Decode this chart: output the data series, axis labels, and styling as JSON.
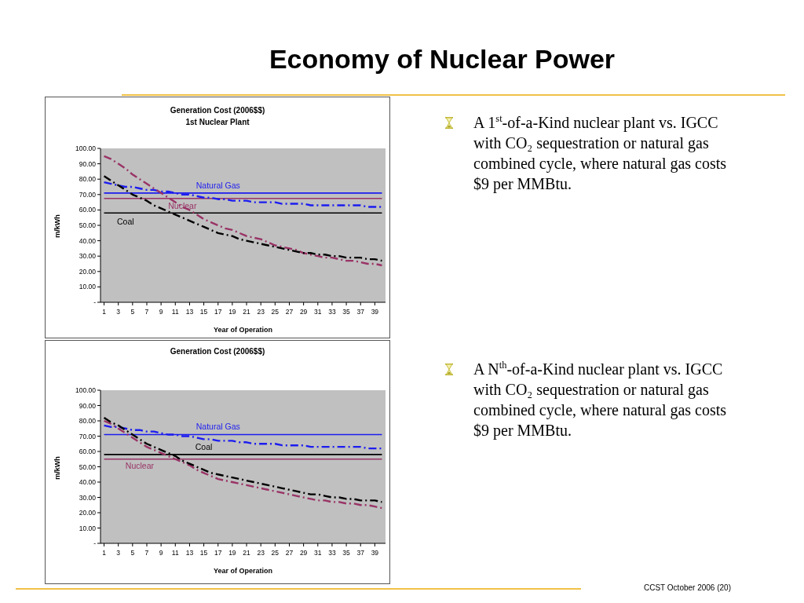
{
  "chart_data": [
    {
      "type": "other",
      "title": "Economy of Nuclear Power"
    },
    {
      "type": "line",
      "title": "Generation Cost (2006$$)",
      "subtitle": "1st Nuclear Plant",
      "xlabel": "Year of Operation",
      "ylabel": "m/kWh",
      "x": [
        1,
        2,
        3,
        4,
        5,
        6,
        7,
        8,
        9,
        10,
        11,
        12,
        13,
        14,
        15,
        16,
        17,
        18,
        19,
        20,
        21,
        22,
        23,
        24,
        25,
        26,
        27,
        28,
        29,
        30,
        31,
        32,
        33,
        34,
        35,
        36,
        37,
        38,
        39,
        40
      ],
      "xlim": [
        0.5,
        40.5
      ],
      "xticks": [
        1,
        3,
        5,
        7,
        9,
        11,
        13,
        15,
        17,
        19,
        21,
        23,
        25,
        27,
        29,
        31,
        33,
        35,
        37,
        39
      ],
      "ylim": [
        0,
        100
      ],
      "yticks": [
        {
          "value": 0,
          "label": "-"
        },
        {
          "value": 10,
          "label": "10.00"
        },
        {
          "value": 20,
          "label": "20.00"
        },
        {
          "value": 30,
          "label": "30.00"
        },
        {
          "value": 40,
          "label": "40.00"
        },
        {
          "value": 50,
          "label": "50.00"
        },
        {
          "value": 60,
          "label": "60.00"
        },
        {
          "value": 70,
          "label": "70.00"
        },
        {
          "value": 80,
          "label": "80.00"
        },
        {
          "value": 90,
          "label": "90.00"
        },
        {
          "value": 100,
          "label": "100.00"
        }
      ],
      "series": [
        {
          "name": "Natural Gas",
          "color": "#1c1cf0",
          "line_style": "solid",
          "values": [
            71,
            71,
            71,
            71,
            71,
            71,
            71,
            71,
            71,
            71,
            71,
            71,
            71,
            71,
            71,
            71,
            71,
            71,
            71,
            71,
            71,
            71,
            71,
            71,
            71,
            71,
            71,
            71,
            71,
            71,
            71,
            71,
            71,
            71,
            71,
            71,
            71,
            71,
            71,
            71
          ]
        },
        {
          "name": "Nuclear",
          "color": "#993366",
          "line_style": "solid",
          "values": [
            67.5,
            67.5,
            67.5,
            67.5,
            67.5,
            67.5,
            67.5,
            67.5,
            67.5,
            67.5,
            67.5,
            67.5,
            67.5,
            67.5,
            67.5,
            67.5,
            67.5,
            67.5,
            67.5,
            67.5,
            67.5,
            67.5,
            67.5,
            67.5,
            67.5,
            67.5,
            67.5,
            67.5,
            67.5,
            67.5,
            67.5,
            67.5,
            67.5,
            67.5,
            67.5,
            67.5,
            67.5,
            67.5,
            67.5,
            67.5
          ]
        },
        {
          "name": "Coal",
          "color": "#000000",
          "line_style": "solid",
          "values": [
            58,
            58,
            58,
            58,
            58,
            58,
            58,
            58,
            58,
            58,
            58,
            58,
            58,
            58,
            58,
            58,
            58,
            58,
            58,
            58,
            58,
            58,
            58,
            58,
            58,
            58,
            58,
            58,
            58,
            58,
            58,
            58,
            58,
            58,
            58,
            58,
            58,
            58,
            58,
            58
          ]
        },
        {
          "color": "#1c1cf0",
          "line_style": "dashed",
          "values": [
            78,
            77,
            76,
            75,
            75,
            74,
            73,
            73,
            72,
            72,
            71,
            70,
            70,
            69,
            68,
            68,
            67,
            67,
            66,
            66,
            66,
            65,
            65,
            65,
            65,
            64,
            64,
            64,
            64,
            63,
            63,
            63,
            63,
            63,
            63,
            63,
            63,
            62,
            62,
            62
          ]
        },
        {
          "color": "#993366",
          "line_style": "dashed",
          "values": [
            95,
            93,
            90,
            87,
            83,
            80,
            77,
            74,
            71,
            68,
            65,
            62,
            60,
            57,
            54,
            52,
            50,
            48,
            47,
            45,
            43,
            42,
            41,
            39,
            37,
            36,
            35,
            34,
            32,
            31,
            30,
            29,
            29,
            28,
            27,
            27,
            26,
            25,
            25,
            24
          ]
        },
        {
          "color": "#000000",
          "line_style": "dashed",
          "values": [
            82,
            79,
            76,
            73,
            70,
            68,
            66,
            63,
            61,
            59,
            57,
            55,
            53,
            51,
            49,
            47,
            45,
            44,
            43,
            41,
            40,
            39,
            38,
            37,
            36,
            35,
            34,
            33,
            32,
            32,
            31,
            31,
            30,
            30,
            29,
            29,
            29,
            28,
            28,
            27
          ]
        }
      ]
    },
    {
      "type": "line",
      "title": "Generation Cost (2006$$)",
      "xlabel": "Year of Operation",
      "ylabel": "m/kWh",
      "x": [
        1,
        2,
        3,
        4,
        5,
        6,
        7,
        8,
        9,
        10,
        11,
        12,
        13,
        14,
        15,
        16,
        17,
        18,
        19,
        20,
        21,
        22,
        23,
        24,
        25,
        26,
        27,
        28,
        29,
        30,
        31,
        32,
        33,
        34,
        35,
        36,
        37,
        38,
        39,
        40
      ],
      "xlim": [
        0.5,
        40.5
      ],
      "xticks": [
        1,
        3,
        5,
        7,
        9,
        11,
        13,
        15,
        17,
        19,
        21,
        23,
        25,
        27,
        29,
        31,
        33,
        35,
        37,
        39
      ],
      "ylim": [
        0,
        100
      ],
      "yticks": [
        {
          "value": 0,
          "label": "-"
        },
        {
          "value": 10,
          "label": "10.00"
        },
        {
          "value": 20,
          "label": "20.00"
        },
        {
          "value": 30,
          "label": "30.00"
        },
        {
          "value": 40,
          "label": "40.00"
        },
        {
          "value": 50,
          "label": "50.00"
        },
        {
          "value": 60,
          "label": "60.00"
        },
        {
          "value": 70,
          "label": "70.00"
        },
        {
          "value": 80,
          "label": "80.00"
        },
        {
          "value": 90,
          "label": "90.00"
        },
        {
          "value": 100,
          "label": "100.00"
        }
      ],
      "series": [
        {
          "name": "Natural Gas",
          "color": "#1c1cf0",
          "line_style": "solid",
          "values": [
            71,
            71,
            71,
            71,
            71,
            71,
            71,
            71,
            71,
            71,
            71,
            71,
            71,
            71,
            71,
            71,
            71,
            71,
            71,
            71,
            71,
            71,
            71,
            71,
            71,
            71,
            71,
            71,
            71,
            71,
            71,
            71,
            71,
            71,
            71,
            71,
            71,
            71,
            71,
            71
          ]
        },
        {
          "name": "Nuclear",
          "color": "#993366",
          "line_style": "solid",
          "values": [
            55,
            55,
            55,
            55,
            55,
            55,
            55,
            55,
            55,
            55,
            55,
            55,
            55,
            55,
            55,
            55,
            55,
            55,
            55,
            55,
            55,
            55,
            55,
            55,
            55,
            55,
            55,
            55,
            55,
            55,
            55,
            55,
            55,
            55,
            55,
            55,
            55,
            55,
            55,
            55
          ]
        },
        {
          "name": "Coal",
          "color": "#000000",
          "line_style": "solid",
          "values": [
            58,
            58,
            58,
            58,
            58,
            58,
            58,
            58,
            58,
            58,
            58,
            58,
            58,
            58,
            58,
            58,
            58,
            58,
            58,
            58,
            58,
            58,
            58,
            58,
            58,
            58,
            58,
            58,
            58,
            58,
            58,
            58,
            58,
            58,
            58,
            58,
            58,
            58,
            58,
            58
          ]
        },
        {
          "color": "#1c1cf0",
          "line_style": "dashed",
          "values": [
            77,
            76,
            76,
            75,
            74,
            74,
            73,
            73,
            72,
            71,
            71,
            70,
            70,
            69,
            68,
            68,
            67,
            67,
            67,
            66,
            66,
            65,
            65,
            65,
            65,
            64,
            64,
            64,
            64,
            63,
            63,
            63,
            63,
            63,
            63,
            63,
            63,
            62,
            62,
            62
          ]
        },
        {
          "color": "#993366",
          "line_style": "dashed",
          "values": [
            80,
            78,
            75,
            72,
            69,
            66,
            63,
            61,
            59,
            57,
            55,
            53,
            51,
            48,
            46,
            44,
            42,
            41,
            40,
            39,
            38,
            37,
            36,
            35,
            34,
            33,
            32,
            31,
            30,
            29,
            28,
            28,
            27,
            27,
            26,
            26,
            25,
            25,
            24,
            23
          ]
        },
        {
          "color": "#000000",
          "line_style": "dashed",
          "values": [
            82,
            79,
            77,
            74,
            71,
            68,
            65,
            63,
            61,
            59,
            57,
            54,
            52,
            50,
            48,
            46,
            45,
            44,
            43,
            42,
            41,
            40,
            39,
            38,
            37,
            36,
            35,
            34,
            33,
            32,
            32,
            31,
            30,
            30,
            29,
            29,
            28,
            28,
            28,
            27
          ]
        }
      ]
    },
    {
      "type": "other",
      "annotations": [
        "A 1$^{st}$-of-a-Kind nuclear plant vs. IGCC with CO₂ sequestration or natural gas combined cycle, where natural gas costs $9 per MMBtu.",
        "A N$^{th}$-of-a-Kind nuclear plant vs. IGCC with CO₂ sequestration or natural gas combined cycle, where natural gas costs $9 per MMBtu.",
        "CCST October 2006 (20)"
      ]
    }
  ]
}
